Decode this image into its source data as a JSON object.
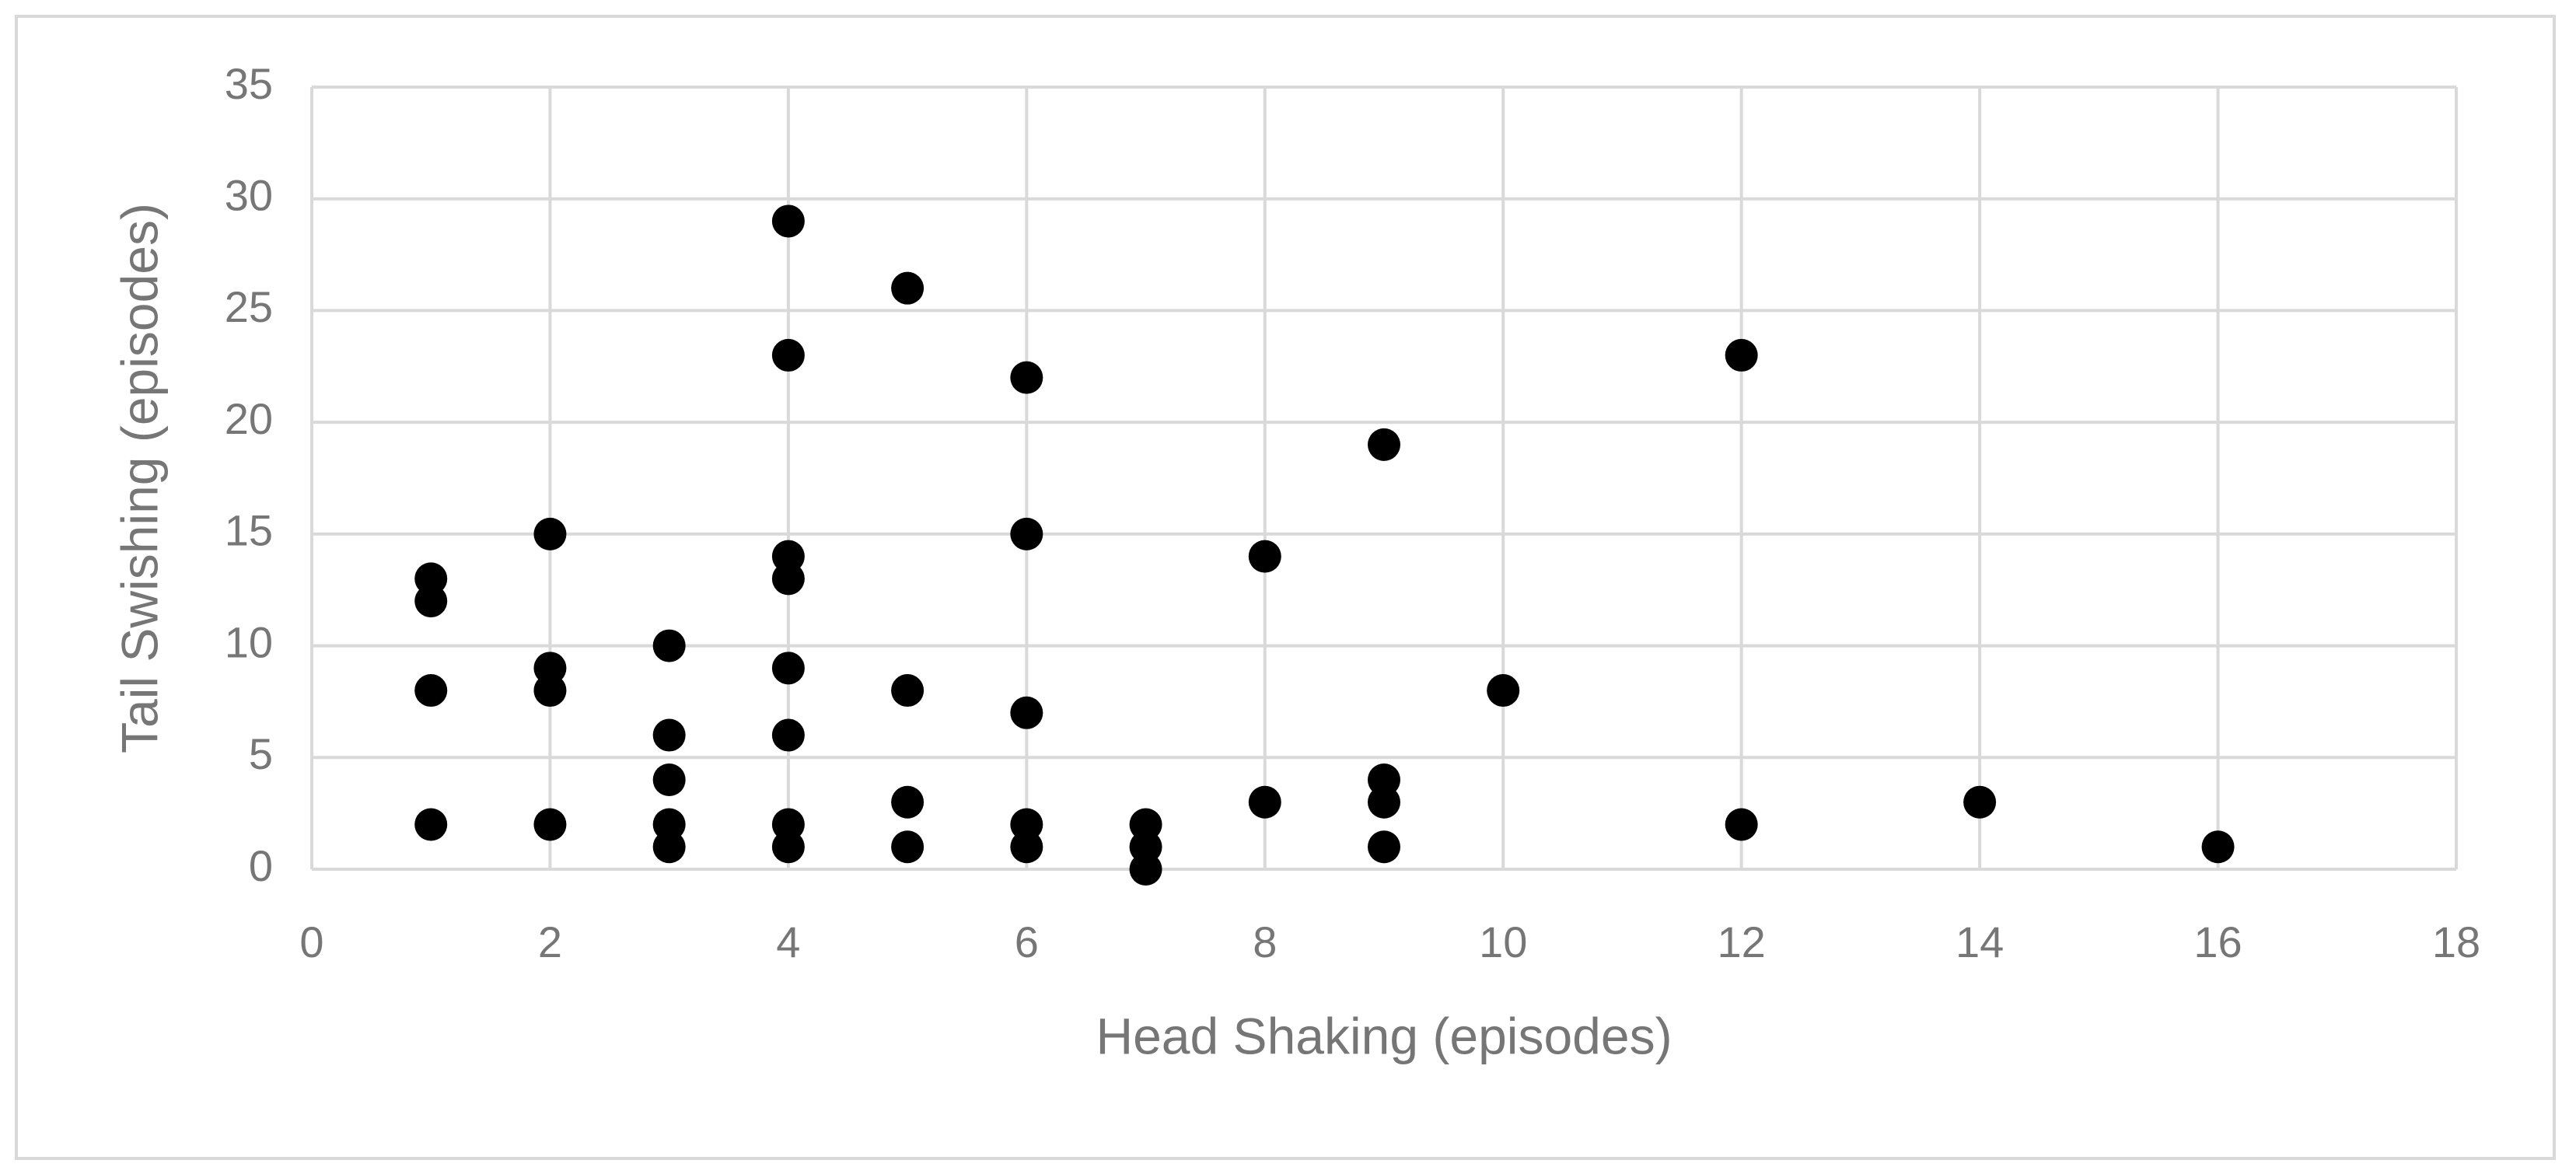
{
  "chart_data": {
    "type": "scatter",
    "x_label": "Head Shaking (episodes)",
    "y_label": "Tail Swishing (episodes)",
    "x": [
      1,
      1,
      1,
      1,
      2,
      2,
      2,
      2,
      3,
      3,
      3,
      3,
      3,
      4,
      4,
      4,
      4,
      4,
      4,
      4,
      4,
      5,
      5,
      5,
      5,
      6,
      6,
      6,
      6,
      6,
      7,
      7,
      7,
      8,
      8,
      9,
      9,
      9,
      9,
      10,
      12,
      12,
      14,
      16
    ],
    "y": [
      13,
      12,
      8,
      2,
      15,
      9,
      8,
      2,
      10,
      6,
      4,
      2,
      1,
      29,
      23,
      14,
      13,
      9,
      6,
      2,
      1,
      26,
      8,
      3,
      1,
      22,
      15,
      7,
      2,
      1,
      2,
      1,
      0,
      14,
      3,
      19,
      4,
      3,
      1,
      8,
      23,
      2,
      3,
      1
    ],
    "color": "#000000",
    "xlim": [
      0,
      18
    ],
    "xticks": [
      0,
      2,
      4,
      6,
      8,
      10,
      12,
      14,
      16,
      18
    ],
    "ylim": [
      0,
      35
    ],
    "yticks": [
      0,
      5,
      10,
      15,
      20,
      25,
      30,
      35
    ],
    "grid": true
  }
}
